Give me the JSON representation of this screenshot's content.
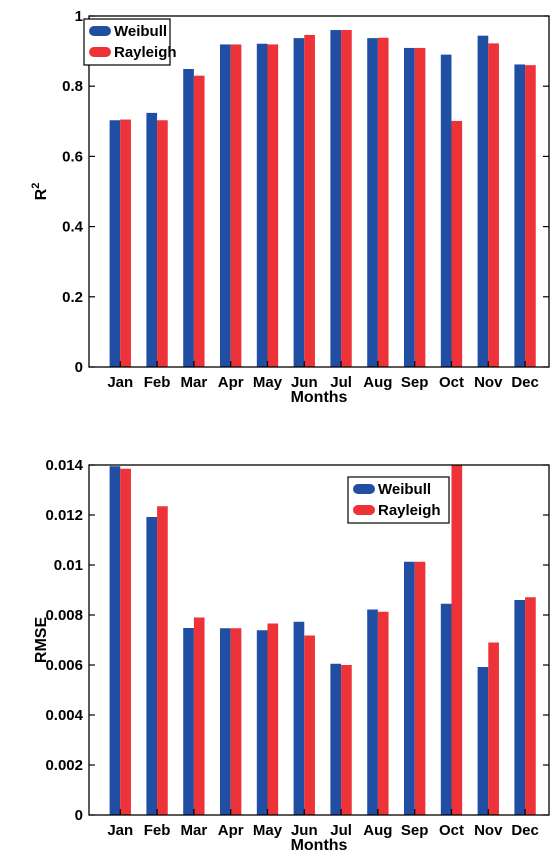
{
  "colors": {
    "weibull": "#1f4ea3",
    "rayleigh": "#ee3338"
  },
  "chart_data": [
    {
      "type": "bar",
      "categories": [
        "Jan",
        "Feb",
        "Mar",
        "Apr",
        "May",
        "Jun",
        "Jul",
        "Aug",
        "Sep",
        "Oct",
        "Nov",
        "Dec"
      ],
      "series": [
        {
          "name": "Weibull",
          "values": [
            0.703,
            0.724,
            0.849,
            0.919,
            0.921,
            0.937,
            0.96,
            0.937,
            0.909,
            0.89,
            0.944,
            0.862
          ]
        },
        {
          "name": "Rayleigh",
          "values": [
            0.705,
            0.703,
            0.83,
            0.919,
            0.919,
            0.946,
            0.96,
            0.938,
            0.909,
            0.701,
            0.922,
            0.86
          ]
        }
      ],
      "xlabel": "Months",
      "ylabel_base": "R",
      "ylabel_sup": "2",
      "ylim": [
        0,
        1
      ],
      "yticks": [
        0,
        0.2,
        0.4,
        0.6,
        0.8,
        1
      ],
      "ytick_labels": [
        "0",
        "0.2",
        "0.4",
        "0.6",
        "0.8",
        "1"
      ],
      "legend": "top-left",
      "grid": false
    },
    {
      "type": "bar",
      "categories": [
        "Jan",
        "Feb",
        "Mar",
        "Apr",
        "May",
        "Jun",
        "Jul",
        "Aug",
        "Sep",
        "Oct",
        "Nov",
        "Dec"
      ],
      "series": [
        {
          "name": "Weibull",
          "values": [
            0.01395,
            0.01192,
            0.00748,
            0.00747,
            0.00739,
            0.00773,
            0.00605,
            0.00822,
            0.01013,
            0.00845,
            0.00592,
            0.0086
          ]
        },
        {
          "name": "Rayleigh",
          "values": [
            0.01385,
            0.01235,
            0.0079,
            0.00747,
            0.00766,
            0.00718,
            0.006,
            0.00813,
            0.01013,
            0.014,
            0.0069,
            0.00871
          ]
        }
      ],
      "xlabel": "Months",
      "ylabel_base": "RMSE",
      "ylabel_sup": "",
      "ylim": [
        0,
        0.014
      ],
      "yticks": [
        0,
        0.002,
        0.004,
        0.006,
        0.008,
        0.01,
        0.012,
        0.014
      ],
      "ytick_labels": [
        "0",
        "0.002",
        "0.004",
        "0.006",
        "0.008",
        "0.01",
        "0.012",
        "0.014"
      ],
      "legend": "top-right",
      "grid": false
    }
  ]
}
